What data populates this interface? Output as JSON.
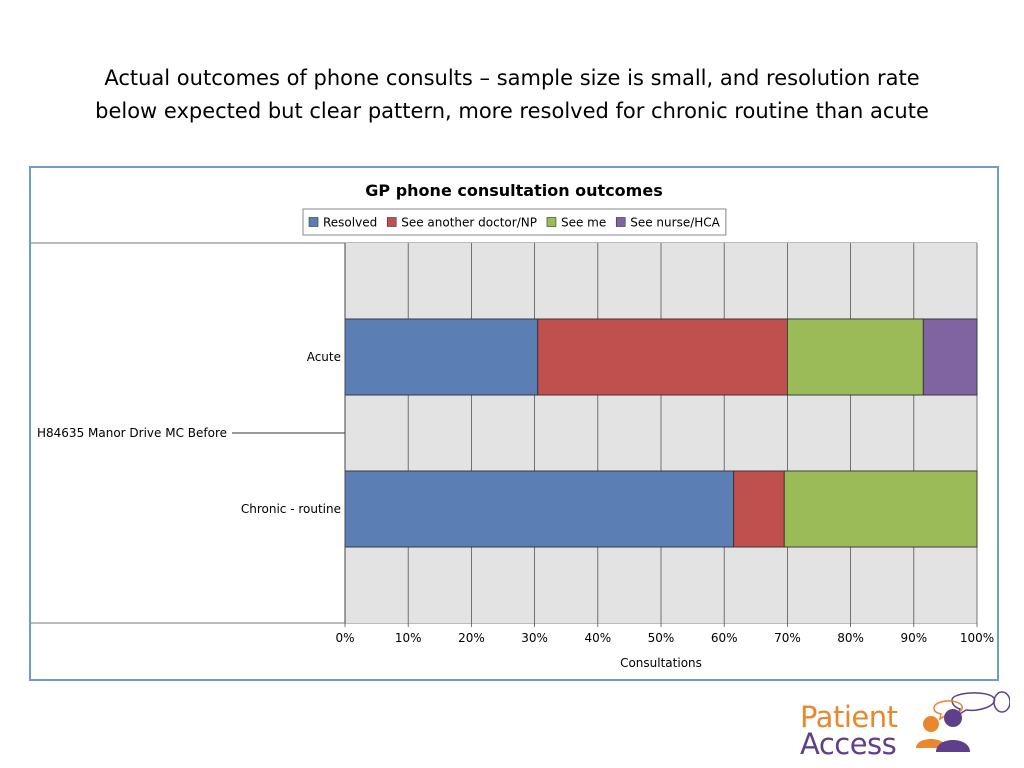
{
  "slide": {
    "title_line1": "Actual outcomes of phone consults – sample size is small, and resolution rate",
    "title_line2": "below expected but clear pattern, more resolved for chronic routine than acute"
  },
  "chart_data": {
    "type": "bar",
    "orientation": "horizontal",
    "stacked": true,
    "title": "GP phone consultation outcomes",
    "group_label": "H84635 Manor Drive MC   Before",
    "categories": [
      "Acute",
      "Chronic - routine"
    ],
    "series": [
      {
        "name": "Resolved",
        "color": "#5b7fb5",
        "values": [
          30.5,
          61.5
        ]
      },
      {
        "name": "See another doctor/NP",
        "color": "#c0504d",
        "values": [
          39.5,
          8.0
        ]
      },
      {
        "name": "See me",
        "color": "#9bbb59",
        "values": [
          21.5,
          30.5
        ]
      },
      {
        "name": "See nurse/HCA",
        "color": "#8064a2",
        "values": [
          8.5,
          0
        ]
      }
    ],
    "xlim": [
      0,
      100
    ],
    "xticks": [
      "0%",
      "10%",
      "20%",
      "30%",
      "40%",
      "50%",
      "60%",
      "70%",
      "80%",
      "90%",
      "100%"
    ],
    "xlabel": "Consultations",
    "ylabel": "",
    "grid": true,
    "legend": "top"
  },
  "logo": {
    "line1": "Patient",
    "line2": "Access",
    "colors": {
      "orange": "#e8872e",
      "purple": "#5e3f8a"
    }
  }
}
